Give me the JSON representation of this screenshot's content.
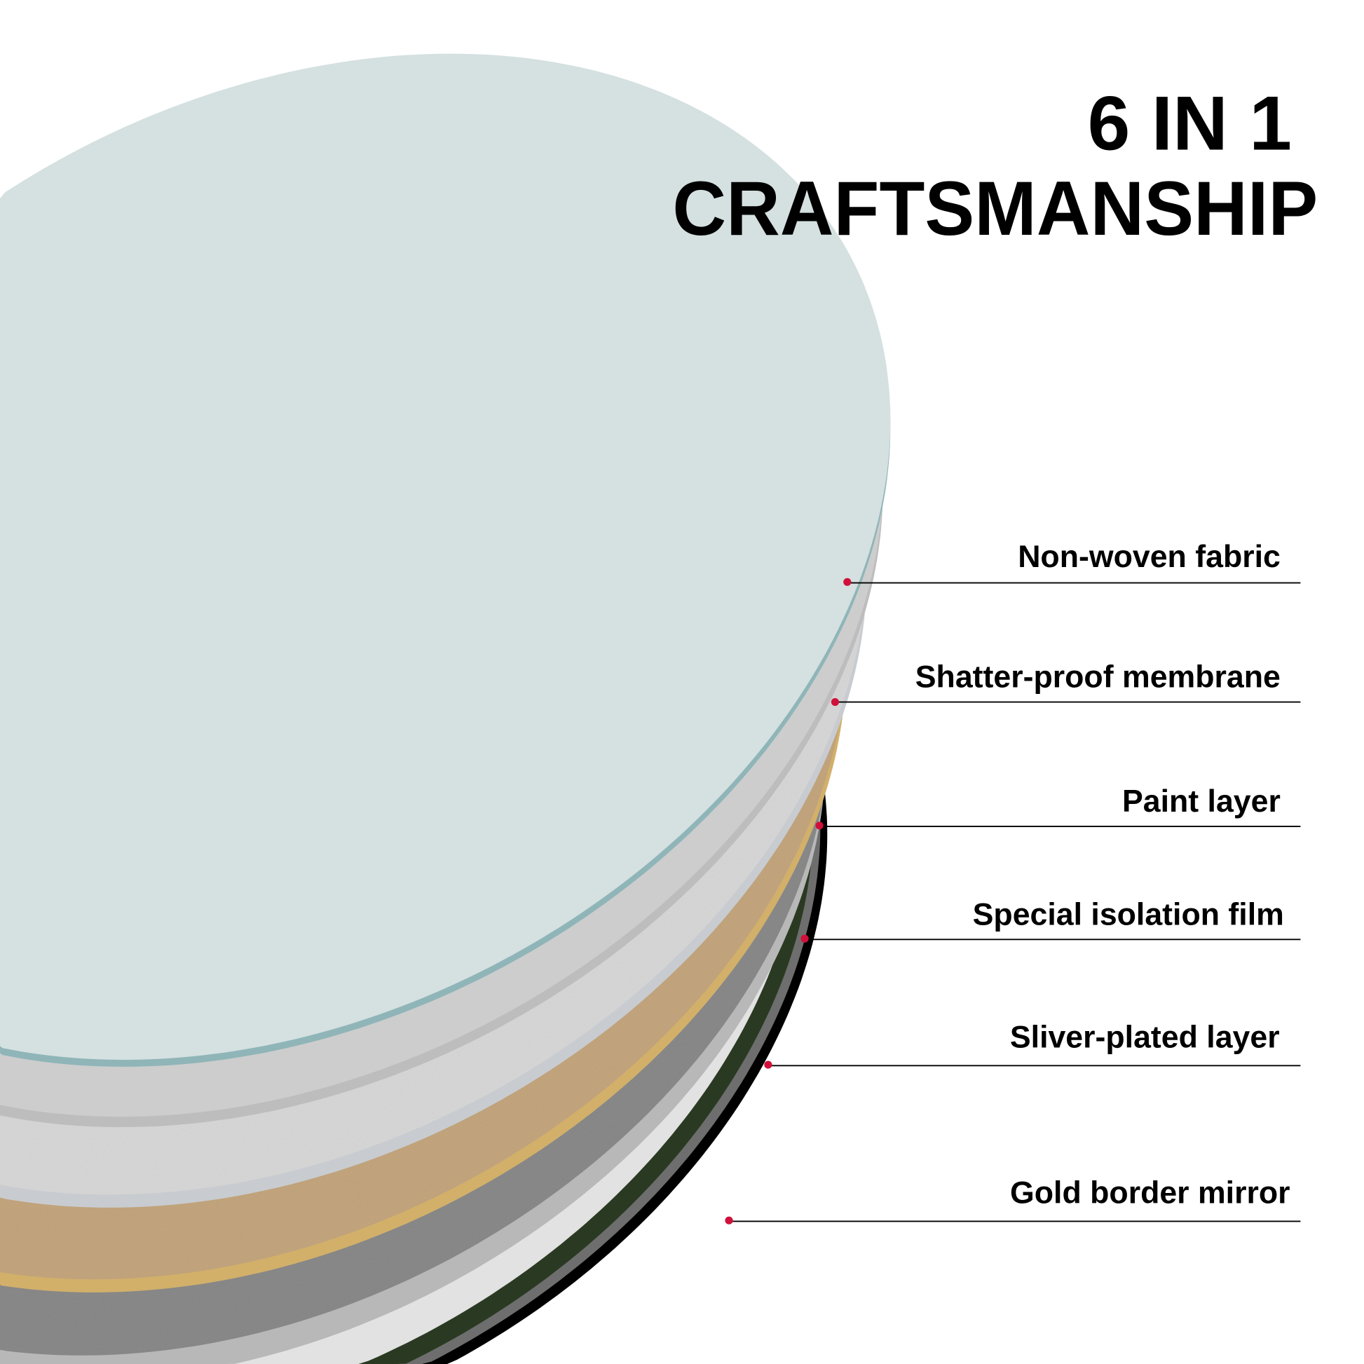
{
  "title": {
    "line1": "6 IN 1",
    "line2": "CRAFTSMANSHIP"
  },
  "layers": [
    {
      "label": "Non-woven fabric"
    },
    {
      "label": "Shatter-proof membrane"
    },
    {
      "label": "Paint layer"
    },
    {
      "label": "Special isolation film"
    },
    {
      "label": "Sliver-plated layer"
    },
    {
      "label": "Gold border mirror"
    }
  ],
  "colors": {
    "top_glass": "#d5e0e0",
    "glass_edge": "#8fb5b8",
    "membrane": "#cdcdcd",
    "paint": "#d8d8d8",
    "isolation_film": "#c4a67e",
    "gold_rim": "#d2b06a",
    "silver": "#8a8a8a",
    "mirror": "#e2e2e2",
    "mirror_rim_green": "#2a3a22",
    "mirror_back": "#000000",
    "marker": "#d0103a"
  }
}
